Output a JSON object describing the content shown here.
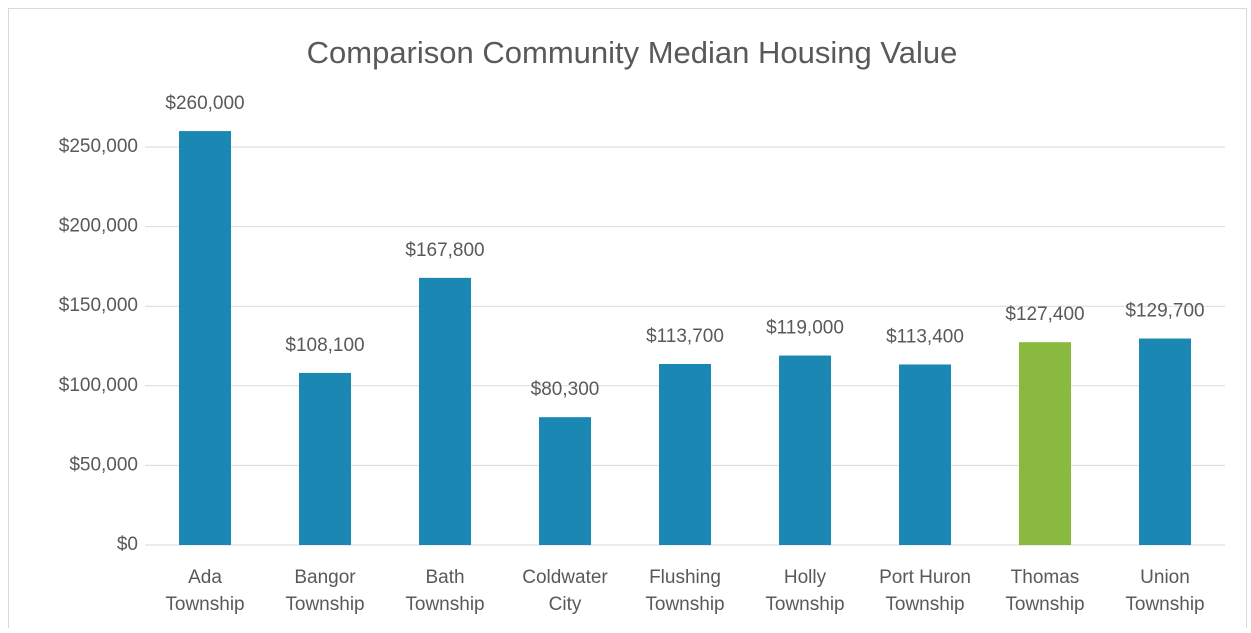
{
  "chart_data": {
    "type": "bar",
    "title": "Comparison Community Median Housing Value",
    "categories": [
      "Ada Township",
      "Bangor Township",
      "Bath Township",
      "Coldwater City",
      "Flushing Township",
      "Holly Township",
      "Port Huron Township",
      "Thomas Township",
      "Union Township"
    ],
    "values": [
      260000,
      108100,
      167800,
      80300,
      113700,
      119000,
      113400,
      127400,
      129700
    ],
    "value_labels": [
      "$260,000",
      "$108,100",
      "$167,800",
      "$80,300",
      "$113,700",
      "$119,000",
      "$113,400",
      "$127,400",
      "$129,700"
    ],
    "colors": [
      "#1b87b3",
      "#1b87b3",
      "#1b87b3",
      "#1b87b3",
      "#1b87b3",
      "#1b87b3",
      "#1b87b3",
      "#8ab940",
      "#1b87b3"
    ],
    "ylim": [
      0,
      250000
    ],
    "yticks": [
      {
        "value": 0,
        "label": "$0"
      },
      {
        "value": 50000,
        "label": "$50,000"
      },
      {
        "value": 100000,
        "label": "$100,000"
      },
      {
        "value": 150000,
        "label": "$150,000"
      },
      {
        "value": 200000,
        "label": "$200,000"
      },
      {
        "value": 250000,
        "label": "$250,000"
      }
    ],
    "grid": true
  }
}
